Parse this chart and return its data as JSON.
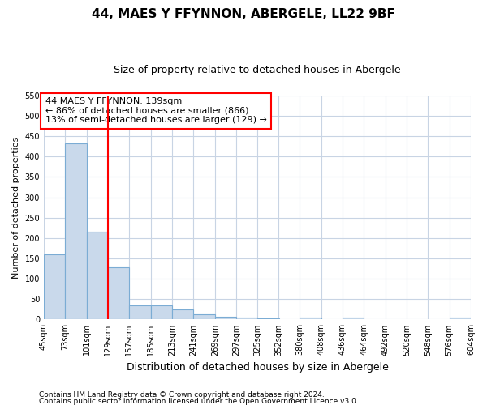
{
  "title": "44, MAES Y FFYNNON, ABERGELE, LL22 9BF",
  "subtitle": "Size of property relative to detached houses in Abergele",
  "xlabel": "Distribution of detached houses by size in Abergele",
  "ylabel": "Number of detached properties",
  "bin_edges": [
    45,
    73,
    101,
    129,
    157,
    185,
    213,
    241,
    269,
    297,
    325,
    352,
    380,
    408,
    436,
    464,
    492,
    520,
    548,
    576,
    604
  ],
  "bar_heights": [
    160,
    432,
    215,
    129,
    35,
    35,
    25,
    12,
    6,
    4,
    3,
    0,
    4,
    0,
    5,
    0,
    0,
    0,
    0,
    4
  ],
  "bar_color": "#c9d9eb",
  "bar_edge_color": "#7bacd4",
  "grid_color": "#c8d4e4",
  "background_color": "#ffffff",
  "plot_bg_color": "#ffffff",
  "red_line_x": 129,
  "ylim": [
    0,
    550
  ],
  "yticks": [
    0,
    50,
    100,
    150,
    200,
    250,
    300,
    350,
    400,
    450,
    500,
    550
  ],
  "annotation_line1": "44 MAES Y FFYNNON: 139sqm",
  "annotation_line2": "← 86% of detached houses are smaller (866)",
  "annotation_line3": "13% of semi-detached houses are larger (129) →",
  "footnote1": "Contains HM Land Registry data © Crown copyright and database right 2024.",
  "footnote2": "Contains public sector information licensed under the Open Government Licence v3.0.",
  "title_fontsize": 11,
  "subtitle_fontsize": 9,
  "ylabel_fontsize": 8,
  "xlabel_fontsize": 9,
  "tick_fontsize": 7,
  "annot_fontsize": 8,
  "footnote_fontsize": 6.5
}
